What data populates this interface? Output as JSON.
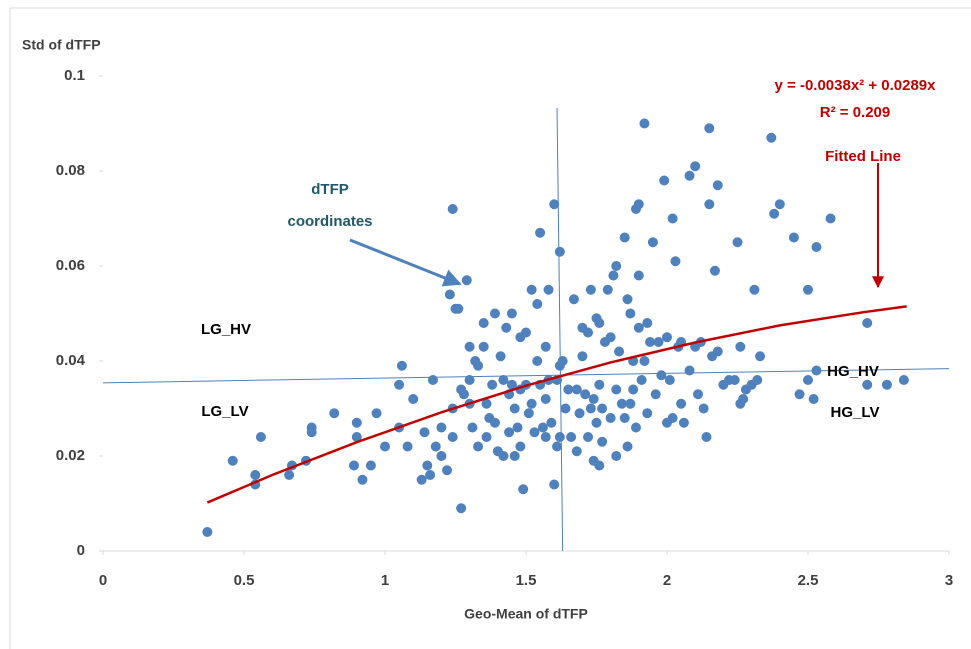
{
  "chart_data": {
    "type": "scatter",
    "x_label": "Geo-Mean of dTFP",
    "y_label": "Std of dTFP",
    "xlim": [
      0,
      3
    ],
    "ylim": [
      0,
      0.1
    ],
    "xticks": [
      0,
      0.5,
      1,
      1.5,
      2,
      2.5,
      3
    ],
    "yticks": [
      0,
      0.02,
      0.04,
      0.06,
      0.08,
      0.1
    ],
    "grid": false,
    "series": [
      {
        "color": "#4f81bd",
        "x": [
          0.37,
          0.46,
          0.54,
          0.54,
          0.56,
          0.66,
          0.67,
          0.72,
          0.74,
          0.74,
          0.82,
          0.89,
          0.9,
          0.9,
          0.92,
          0.95,
          0.97,
          1.0,
          1.05,
          1.06,
          1.05,
          1.08,
          1.1,
          1.13,
          1.14,
          1.15,
          1.16,
          1.17,
          1.18,
          1.2,
          1.2,
          1.22,
          1.23,
          1.24,
          1.25,
          1.26,
          1.24,
          1.24,
          1.27,
          1.27,
          1.28,
          1.29,
          1.3,
          1.3,
          1.3,
          1.31,
          1.32,
          1.33,
          1.33,
          1.35,
          1.35,
          1.36,
          1.36,
          1.37,
          1.38,
          1.39,
          1.39,
          1.4,
          1.41,
          1.42,
          1.42,
          1.43,
          1.44,
          1.44,
          1.45,
          1.45,
          1.46,
          1.46,
          1.47,
          1.48,
          1.48,
          1.48,
          1.49,
          1.5,
          1.5,
          1.51,
          1.52,
          1.52,
          1.53,
          1.54,
          1.54,
          1.55,
          1.55,
          1.56,
          1.57,
          1.57,
          1.57,
          1.58,
          1.58,
          1.59,
          1.6,
          1.6,
          1.61,
          1.61,
          1.62,
          1.62,
          1.62,
          1.63,
          1.64,
          1.65,
          1.66,
          1.67,
          1.68,
          1.68,
          1.69,
          1.7,
          1.7,
          1.71,
          1.72,
          1.72,
          1.73,
          1.73,
          1.74,
          1.74,
          1.75,
          1.75,
          1.76,
          1.76,
          1.76,
          1.77,
          1.77,
          1.78,
          1.79,
          1.8,
          1.8,
          1.81,
          1.82,
          1.82,
          1.82,
          1.83,
          1.84,
          1.85,
          1.85,
          1.86,
          1.86,
          1.87,
          1.87,
          1.88,
          1.88,
          1.89,
          1.89,
          1.9,
          1.9,
          1.9,
          1.91,
          1.92,
          1.92,
          1.93,
          1.93,
          1.94,
          1.95,
          1.96,
          1.97,
          1.98,
          1.99,
          2.0,
          2.0,
          2.01,
          2.02,
          2.02,
          2.03,
          2.04,
          2.05,
          2.05,
          2.06,
          2.08,
          2.08,
          2.1,
          2.1,
          2.11,
          2.12,
          2.13,
          2.14,
          2.15,
          2.15,
          2.16,
          2.17,
          2.18,
          2.18,
          2.2,
          2.22,
          2.24,
          2.25,
          2.26,
          2.26,
          2.27,
          2.28,
          2.3,
          2.31,
          2.32,
          2.33,
          2.37,
          2.38,
          2.4,
          2.45,
          2.47,
          2.5,
          2.5,
          2.52,
          2.53,
          2.53,
          2.58,
          2.71,
          2.71,
          2.78,
          2.84
        ],
        "values": [
          0.004,
          0.019,
          0.014,
          0.016,
          0.024,
          0.016,
          0.018,
          0.019,
          0.026,
          0.025,
          0.029,
          0.018,
          0.027,
          0.024,
          0.015,
          0.018,
          0.029,
          0.022,
          0.035,
          0.039,
          0.026,
          0.022,
          0.032,
          0.015,
          0.025,
          0.018,
          0.016,
          0.036,
          0.022,
          0.02,
          0.026,
          0.017,
          0.054,
          0.072,
          0.051,
          0.051,
          0.03,
          0.024,
          0.009,
          0.034,
          0.033,
          0.057,
          0.043,
          0.036,
          0.031,
          0.026,
          0.04,
          0.039,
          0.022,
          0.048,
          0.043,
          0.031,
          0.024,
          0.028,
          0.035,
          0.05,
          0.027,
          0.021,
          0.041,
          0.02,
          0.036,
          0.047,
          0.033,
          0.025,
          0.05,
          0.035,
          0.03,
          0.02,
          0.026,
          0.045,
          0.034,
          0.022,
          0.013,
          0.046,
          0.035,
          0.029,
          0.055,
          0.031,
          0.025,
          0.052,
          0.04,
          0.067,
          0.035,
          0.026,
          0.032,
          0.043,
          0.024,
          0.055,
          0.036,
          0.027,
          0.073,
          0.014,
          0.022,
          0.036,
          0.063,
          0.039,
          0.024,
          0.04,
          0.03,
          0.034,
          0.024,
          0.053,
          0.034,
          0.021,
          0.029,
          0.041,
          0.047,
          0.033,
          0.046,
          0.024,
          0.055,
          0.03,
          0.032,
          0.019,
          0.049,
          0.027,
          0.048,
          0.035,
          0.018,
          0.03,
          0.023,
          0.044,
          0.055,
          0.045,
          0.028,
          0.058,
          0.06,
          0.034,
          0.02,
          0.042,
          0.031,
          0.066,
          0.028,
          0.053,
          0.022,
          0.05,
          0.031,
          0.04,
          0.034,
          0.072,
          0.026,
          0.047,
          0.073,
          0.058,
          0.036,
          0.09,
          0.04,
          0.048,
          0.029,
          0.044,
          0.065,
          0.033,
          0.044,
          0.037,
          0.078,
          0.045,
          0.027,
          0.036,
          0.07,
          0.028,
          0.061,
          0.043,
          0.031,
          0.044,
          0.027,
          0.038,
          0.079,
          0.081,
          0.043,
          0.033,
          0.044,
          0.03,
          0.024,
          0.089,
          0.073,
          0.041,
          0.059,
          0.077,
          0.042,
          0.035,
          0.036,
          0.036,
          0.065,
          0.043,
          0.031,
          0.032,
          0.034,
          0.035,
          0.055,
          0.036,
          0.041,
          0.087,
          0.071,
          0.073,
          0.066,
          0.033,
          0.055,
          0.036,
          0.032,
          0.064,
          0.038,
          0.07,
          0.048,
          0.035,
          0.035,
          0.036
        ]
      }
    ],
    "fit_line": {
      "color": "#c00000",
      "x": [
        0.37,
        0.6,
        0.9,
        1.2,
        1.5,
        1.8,
        2.1,
        2.4,
        2.7,
        2.85
      ],
      "values": [
        0.0102,
        0.016,
        0.0229,
        0.0292,
        0.0348,
        0.0397,
        0.0439,
        0.0475,
        0.0503,
        0.0515
      ]
    },
    "reference_lines": [
      {
        "color": "#4f81bd",
        "x": [
          1.61,
          1.63
        ],
        "values": [
          0.0933,
          0
        ]
      },
      {
        "color": "#4f81bd",
        "x": [
          0,
          3
        ],
        "values": [
          0.0354,
          0.0384
        ]
      }
    ],
    "annotations": [
      {
        "text": "y = -0.0038x² + 0.0289x",
        "color": "#c00000"
      },
      {
        "text": "R² = 0.209",
        "color": "#c00000"
      },
      {
        "text": "Fitted Line",
        "color": "#c00000"
      },
      {
        "text": "dTFP",
        "color": "#215968"
      },
      {
        "text": "coordinates",
        "color": "#215968"
      },
      {
        "text": "LG_HV",
        "color": "#000000"
      },
      {
        "text": "LG_LV",
        "color": "#000000"
      },
      {
        "text": "HG_HV",
        "color": "#000000"
      },
      {
        "text": "HG_LV",
        "color": "#000000"
      }
    ]
  }
}
